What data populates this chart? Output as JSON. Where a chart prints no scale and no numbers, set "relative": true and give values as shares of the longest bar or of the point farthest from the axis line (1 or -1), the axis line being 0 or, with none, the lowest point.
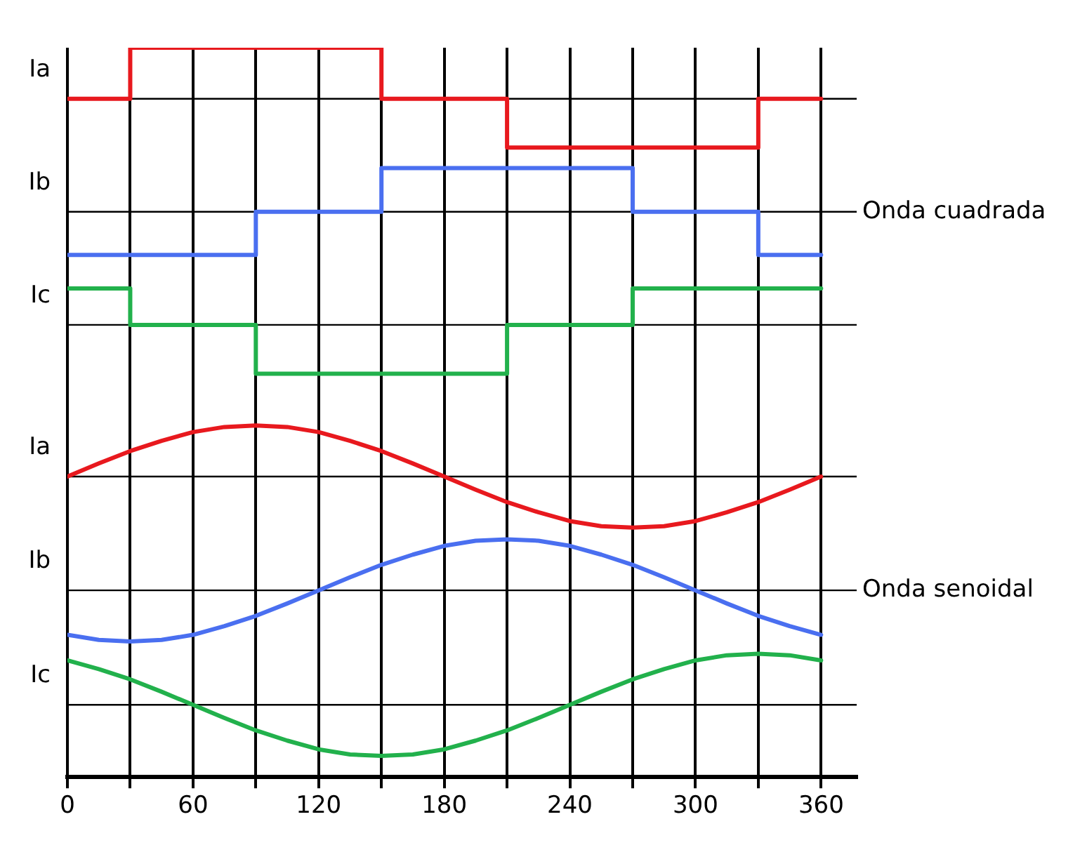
{
  "chart_data": {
    "type": "line",
    "relative": true,
    "xlim": [
      0,
      377
    ],
    "xticks": [
      0,
      {
        "value": 30,
        "label": null
      },
      60,
      {
        "value": 90,
        "label": null
      },
      120,
      {
        "value": 150,
        "label": null
      },
      180,
      {
        "value": 210,
        "label": null
      },
      240,
      {
        "value": 270,
        "label": null
      },
      300,
      {
        "value": 330,
        "label": null
      },
      360
    ],
    "grid": "x",
    "legend": false,
    "marker": "none",
    "series": [
      {
        "type": "step",
        "color": "#e8191e",
        "x": [
          0,
          30,
          150,
          210,
          330,
          360
        ],
        "values": [
          0.93,
          1,
          0.93,
          0.863,
          0.93,
          0.93
        ]
      },
      {
        "type": "step",
        "color": "#4a6ff0",
        "x": [
          0,
          90,
          150,
          270,
          330,
          360
        ],
        "values": [
          0.716,
          0.775,
          0.835,
          0.775,
          0.716,
          0.716
        ]
      },
      {
        "type": "step",
        "color": "#22b14c",
        "x": [
          0,
          30,
          90,
          210,
          270,
          360
        ],
        "values": [
          0.67,
          0.62,
          0.553,
          0.62,
          0.67,
          0.67
        ]
      },
      {
        "type": "line",
        "color": "#e8191e",
        "x": [
          0,
          15,
          30,
          45,
          60,
          75,
          90,
          105,
          120,
          135,
          150,
          165,
          180,
          195,
          210,
          225,
          240,
          255,
          270,
          285,
          300,
          315,
          330,
          345,
          360
        ],
        "values": [
          0.412,
          0.43,
          0.447,
          0.461,
          0.473,
          0.48,
          0.482,
          0.48,
          0.473,
          0.461,
          0.447,
          0.43,
          0.412,
          0.394,
          0.377,
          0.363,
          0.351,
          0.344,
          0.342,
          0.344,
          0.351,
          0.363,
          0.377,
          0.394,
          0.412
        ]
      },
      {
        "type": "line",
        "color": "#4a6ff0",
        "x": [
          0,
          15,
          30,
          45,
          60,
          75,
          90,
          105,
          120,
          135,
          150,
          165,
          180,
          195,
          210,
          225,
          240,
          255,
          270,
          285,
          300,
          315,
          330,
          345,
          360
        ],
        "values": [
          0.195,
          0.188,
          0.186,
          0.188,
          0.195,
          0.207,
          0.221,
          0.238,
          0.256,
          0.274,
          0.291,
          0.305,
          0.317,
          0.324,
          0.326,
          0.324,
          0.317,
          0.305,
          0.291,
          0.274,
          0.256,
          0.238,
          0.221,
          0.207,
          0.195
        ]
      },
      {
        "type": "line",
        "color": "#22b14c",
        "x": [
          0,
          15,
          30,
          45,
          60,
          75,
          90,
          105,
          120,
          135,
          150,
          165,
          180,
          195,
          210,
          225,
          240,
          255,
          270,
          285,
          300,
          315,
          330,
          345,
          360
        ],
        "values": [
          0.16,
          0.148,
          0.134,
          0.117,
          0.099,
          0.081,
          0.064,
          0.05,
          0.038,
          0.031,
          0.029,
          0.031,
          0.038,
          0.05,
          0.064,
          0.081,
          0.099,
          0.117,
          0.134,
          0.148,
          0.16,
          0.167,
          0.169,
          0.167,
          0.16
        ]
      }
    ],
    "ref_lines": [
      {
        "axis": "y",
        "value": 0.93,
        "label": "Ia"
      },
      {
        "axis": "y",
        "value": 0.775,
        "label": "Ib"
      },
      {
        "axis": "y",
        "value": 0.62,
        "label": "Ic"
      },
      {
        "axis": "y",
        "value": 0.412,
        "label": "Ia"
      },
      {
        "axis": "y",
        "value": 0.256,
        "label": "Ib"
      },
      {
        "axis": "y",
        "value": 0.099,
        "label": "Ic"
      }
    ],
    "annotations": [
      "Onda cuadrada",
      "Onda senoidal"
    ]
  }
}
